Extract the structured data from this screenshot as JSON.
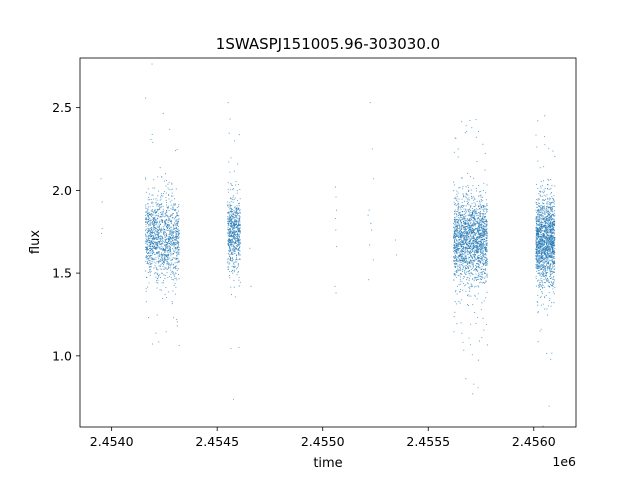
{
  "chart_data": {
    "type": "scatter",
    "title": "1SWASPJ151005.96-303030.0",
    "xlabel": "time",
    "ylabel": "flux",
    "x_offset_label": "1e6",
    "xlim": [
      2453850,
      2456200
    ],
    "ylim": [
      0.57,
      2.8
    ],
    "x_ticks": [
      2454000,
      2454500,
      2455000,
      2455500,
      2456000
    ],
    "x_tick_labels": [
      "2.4540",
      "2.4545",
      "2.4550",
      "2.4555",
      "2.4560"
    ],
    "y_ticks": [
      1.0,
      1.5,
      2.0,
      2.5
    ],
    "y_tick_labels": [
      "1.0",
      "1.5",
      "2.0",
      "2.5"
    ],
    "grid": false,
    "marker_color": "#1f77b4",
    "clusters": [
      {
        "x_start": 2454160,
        "x_end": 2454320,
        "y_center": 1.72,
        "y_spread": 0.12,
        "points": 1300
      },
      {
        "x_start": 2454550,
        "x_end": 2454610,
        "y_center": 1.74,
        "y_spread": 0.11,
        "points": 650
      },
      {
        "x_start": 2455620,
        "x_end": 2455780,
        "y_center": 1.7,
        "y_spread": 0.13,
        "points": 1900
      },
      {
        "x_start": 2456010,
        "x_end": 2456100,
        "y_center": 1.7,
        "y_spread": 0.13,
        "points": 1600
      }
    ],
    "sparse_points": [
      [
        2453950,
        2.07
      ],
      [
        2453955,
        1.93
      ],
      [
        2453955,
        1.77
      ],
      [
        2453952,
        1.74
      ],
      [
        2454655,
        1.65
      ],
      [
        2454660,
        1.42
      ],
      [
        2455060,
        2.02
      ],
      [
        2455063,
        1.96
      ],
      [
        2455065,
        1.88
      ],
      [
        2455060,
        1.83
      ],
      [
        2455062,
        1.76
      ],
      [
        2455066,
        1.66
      ],
      [
        2455058,
        1.42
      ],
      [
        2455063,
        1.38
      ],
      [
        2455225,
        2.53
      ],
      [
        2455235,
        2.25
      ],
      [
        2455240,
        2.07
      ],
      [
        2455220,
        1.88
      ],
      [
        2455215,
        1.85
      ],
      [
        2455228,
        1.8
      ],
      [
        2455232,
        1.76
      ],
      [
        2455222,
        1.67
      ],
      [
        2455218,
        1.46
      ],
      [
        2455240,
        1.58
      ],
      [
        2455345,
        1.7
      ],
      [
        2455350,
        1.61
      ]
    ]
  }
}
